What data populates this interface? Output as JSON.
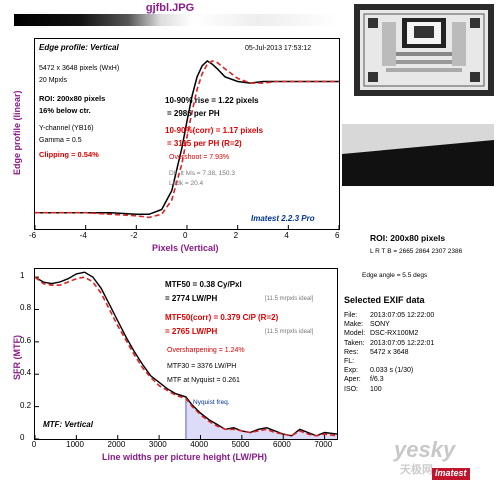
{
  "page": {
    "title": "gjfbl.JPG"
  },
  "edge_panel": {
    "title": "Edge profile: Vertical",
    "date": "05-Jul-2013 17:53:12",
    "dims": "5472 x 3648 pixels (WxH)",
    "mpxls": "20 Mpxls",
    "roi": "ROI: 200x80 pixels",
    "roi_pos": "16% below ctr.",
    "channel": "Y-channel  (YB16)",
    "gamma": "Gamma = 0.5",
    "clipping": "Clipping =  0.54%",
    "rise": "10-90% rise = 1.22 pixels",
    "rise_ph": "= 2986 per PH",
    "rise_corr": "10-90%(corr) = 1.17 pixels",
    "rise_corr_ph": "= 3115 per PH  (R=2)",
    "overshoot": "Overshoot = 7.93%",
    "dk_lvls": "Dk, lt lvls = 7.38, 150.3",
    "lt_dk": "Lt/dk = 20.4",
    "brand": "Imatest 2.2.3 Pro",
    "ylabel": "Edge profile (linear)",
    "xlabel": "Pixels (Vertical)"
  },
  "mtf_panel": {
    "title": "MTF: Vertical",
    "mtf50": "MTF50 = 0.38 Cy/Pxl",
    "mtf50_lw": "= 2774 LW/PH",
    "ideal1": "[11.5 mrpxls ideal]",
    "mtf50_corr": "MTF50(corr) = 0.379 C/P  (R=2)",
    "mtf50_corr_lw": "= 2765 LW/PH",
    "ideal2": "[11.5 mrpxls ideal]",
    "oversharpening": "Oversharpening = 1.24%",
    "mtf30": "MTF30 = 3376 LW/PH",
    "mtf_nyquist": "MTF at Nyquist = 0.261",
    "nyquist_label": "Nyquist freq.",
    "ylabel": "SFR (MTF)",
    "xlabel": "Line widths per picture height (LW/PH)"
  },
  "roi_info": {
    "title": "ROI: 200x80 pixels",
    "lrtb": "L R T B = 2665 2864  2307 2386",
    "edge_angle": "Edge angle = 5.5 degs"
  },
  "exif": {
    "title": "Selected EXIF data",
    "rows": [
      {
        "k": "File:",
        "v": "2013:07:05 12:22:00"
      },
      {
        "k": "Make:",
        "v": "SONY"
      },
      {
        "k": "Model:",
        "v": "DSC-RX100M2"
      },
      {
        "k": "Taken:",
        "v": "2013:07:05 12:22:01"
      },
      {
        "k": "Res:",
        "v": "5472 x 3648"
      },
      {
        "k": "FL:",
        "v": ""
      },
      {
        "k": "Exp:",
        "v": "0.033 s  (1/30)"
      },
      {
        "k": "Aper:",
        "v": "f/6.3"
      },
      {
        "k": "ISO:",
        "v": "100"
      }
    ]
  },
  "watermark": {
    "site": "yesky",
    "cn": "天极网",
    "brand": "Imatest"
  },
  "chart_data": [
    {
      "type": "line",
      "title": "Edge profile: Vertical",
      "xlabel": "Pixels (Vertical)",
      "ylabel": "Edge profile (linear)",
      "xlim": [
        -6,
        6
      ],
      "xticks": [
        -6,
        -4,
        -2,
        0,
        2,
        4,
        6
      ],
      "series": [
        {
          "color": "#000000",
          "style": "solid",
          "x": [
            -6,
            -5,
            -4,
            -3,
            -2,
            -1.5,
            -1,
            -0.6,
            -0.2,
            0,
            0.2,
            0.4,
            0.6,
            0.8,
            1,
            1.2,
            1.5,
            2,
            2.5,
            3,
            3.5,
            4,
            5,
            6
          ],
          "y": [
            0.04,
            0.04,
            0.04,
            0.04,
            0.03,
            0.03,
            0.06,
            0.18,
            0.45,
            0.62,
            0.78,
            0.9,
            0.97,
            1.0,
            0.98,
            0.95,
            0.9,
            0.87,
            0.86,
            0.87,
            0.87,
            0.87,
            0.87,
            0.87
          ]
        },
        {
          "color": "#dd2222",
          "style": "dashed",
          "x": [
            -6,
            -5,
            -4,
            -3,
            -2,
            -1.5,
            -1,
            -0.6,
            -0.2,
            0,
            0.2,
            0.4,
            0.6,
            0.8,
            1,
            1.2,
            1.5,
            2,
            2.5,
            3,
            3.5,
            4,
            5,
            6
          ],
          "y": [
            0.04,
            0.04,
            0.04,
            0.03,
            0.02,
            0.01,
            0.03,
            0.12,
            0.35,
            0.52,
            0.68,
            0.82,
            0.92,
            0.98,
            1.0,
            0.99,
            0.95,
            0.89,
            0.86,
            0.86,
            0.87,
            0.87,
            0.87,
            0.87
          ]
        }
      ]
    },
    {
      "type": "line",
      "title": "MTF: Vertical",
      "xlabel": "Line widths per picture height (LW/PH)",
      "ylabel": "SFR (MTF)",
      "xlim": [
        0,
        7300
      ],
      "ylim": [
        0,
        1.05
      ],
      "xticks": [
        0,
        1000,
        2000,
        3000,
        4000,
        5000,
        6000,
        7000
      ],
      "yticks": [
        0,
        0.2,
        0.4,
        0.6,
        0.8,
        1
      ],
      "nyquist_x": 3648,
      "series": [
        {
          "color": "#000000",
          "style": "solid",
          "x": [
            0,
            200,
            400,
            600,
            800,
            1000,
            1200,
            1400,
            1600,
            1800,
            2000,
            2200,
            2400,
            2600,
            2800,
            3000,
            3200,
            3400,
            3648,
            3800,
            4000,
            4200,
            4400,
            4600,
            4800,
            5000,
            5200,
            5400,
            5600,
            5800,
            6000,
            6200,
            6400,
            6600,
            6800,
            7000,
            7300
          ],
          "y": [
            1.0,
            0.97,
            0.96,
            0.97,
            0.99,
            1.02,
            1.03,
            1.0,
            0.93,
            0.83,
            0.73,
            0.63,
            0.54,
            0.46,
            0.39,
            0.35,
            0.31,
            0.28,
            0.26,
            0.21,
            0.16,
            0.12,
            0.09,
            0.06,
            0.07,
            0.05,
            0.04,
            0.06,
            0.07,
            0.05,
            0.03,
            0.02,
            0.06,
            0.04,
            0.02,
            0.04,
            0.03
          ]
        },
        {
          "color": "#dd2222",
          "style": "dashed",
          "x": [
            0,
            200,
            400,
            600,
            800,
            1000,
            1200,
            1400,
            1600,
            1800,
            2000,
            2200,
            2400,
            2600,
            2800,
            3000,
            3200,
            3400,
            3648,
            3800,
            4000,
            4200,
            4400,
            4600,
            4800,
            5000,
            5200,
            5400,
            5600,
            5800,
            6000,
            6200,
            6400,
            6600,
            6800,
            7000,
            7300
          ],
          "y": [
            1.0,
            0.96,
            0.95,
            0.95,
            0.97,
            0.99,
            1.0,
            0.97,
            0.9,
            0.8,
            0.7,
            0.61,
            0.52,
            0.44,
            0.38,
            0.33,
            0.3,
            0.27,
            0.25,
            0.2,
            0.15,
            0.11,
            0.08,
            0.06,
            0.06,
            0.05,
            0.04,
            0.05,
            0.06,
            0.04,
            0.03,
            0.02,
            0.05,
            0.03,
            0.02,
            0.03,
            0.02
          ]
        }
      ]
    }
  ]
}
